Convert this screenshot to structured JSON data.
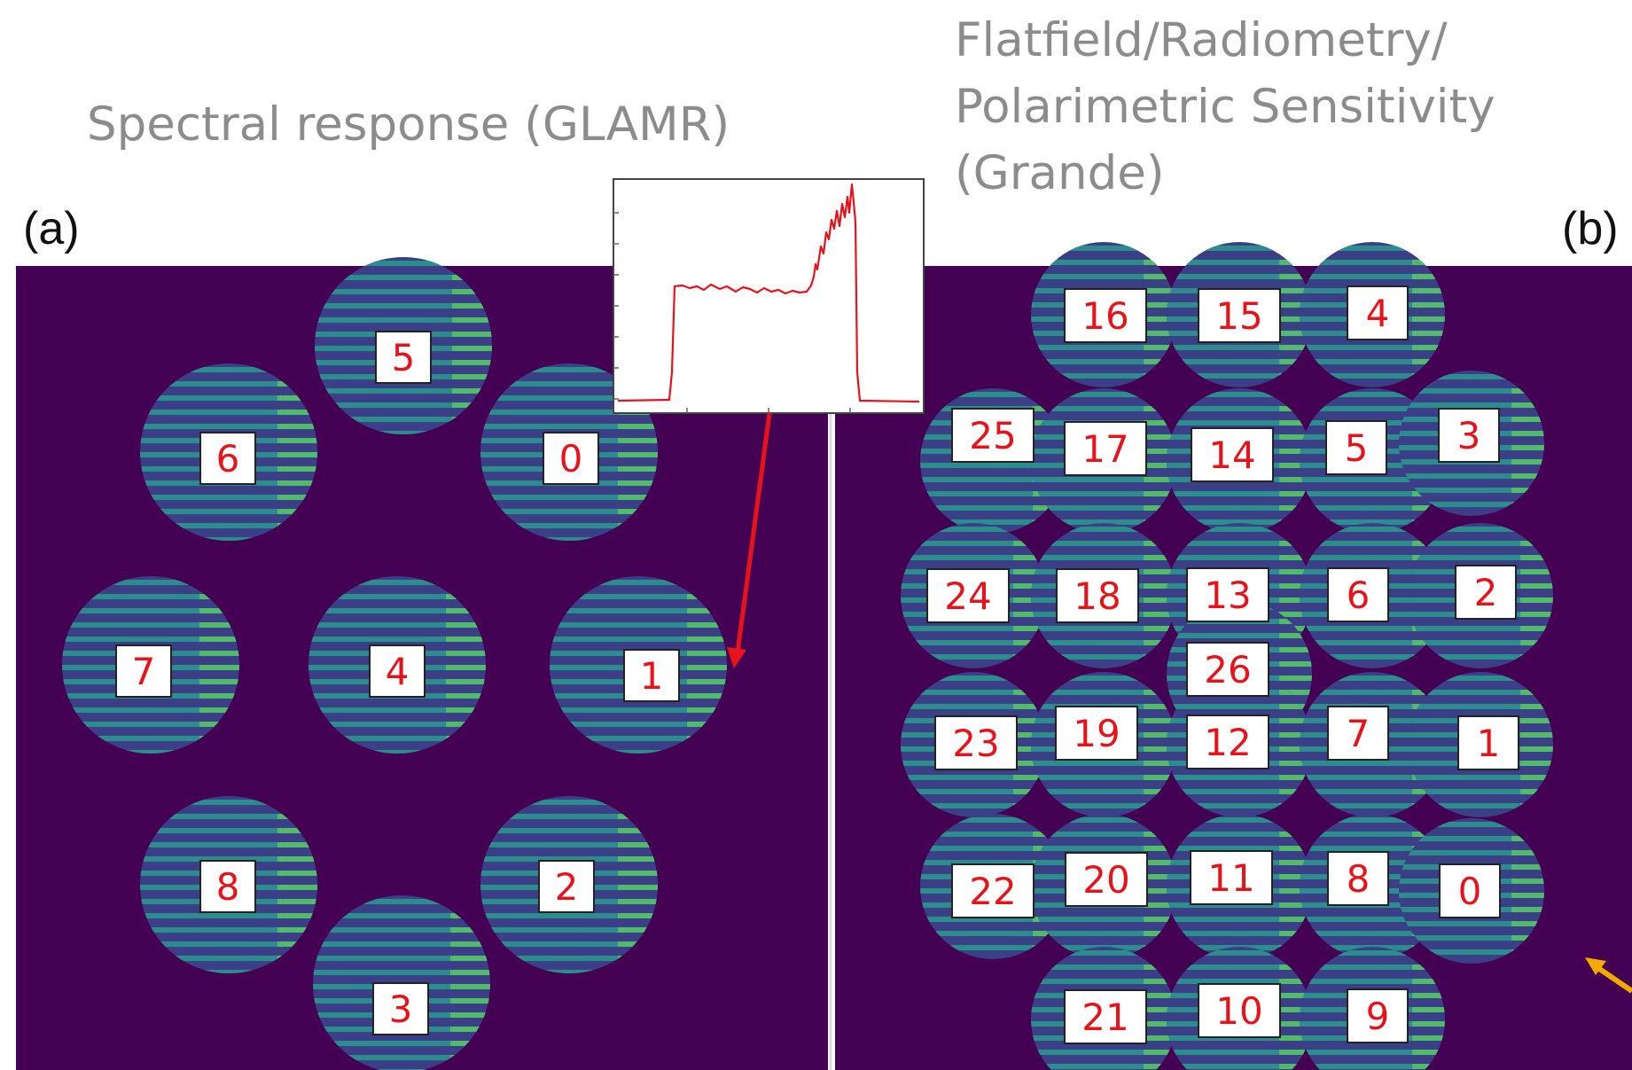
{
  "captions": {
    "left": "Spectral response (GLAMR)",
    "right_lines": [
      "Flatfield/Radiometry/",
      "Polarimetric Sensitivity",
      "(Grande)"
    ]
  },
  "panels": {
    "a": {
      "letter": "(a)",
      "labels": [
        "5",
        "6",
        "0",
        "7",
        "4",
        "1",
        "8",
        "2",
        "3"
      ]
    },
    "b": {
      "letter": "(b)",
      "labels": [
        "16",
        "15",
        "4",
        "25",
        "17",
        "14",
        "5",
        "3",
        "24",
        "18",
        "13",
        "6",
        "2",
        "26",
        "23",
        "19",
        "12",
        "7",
        "1",
        "22",
        "20",
        "11",
        "8",
        "0",
        "21",
        "10",
        "9"
      ]
    }
  },
  "colors": {
    "background": "#440154",
    "disk": "#3b3f86",
    "stripe": "#2c8c8e",
    "stripe_bright": "#5ec962",
    "label_text": "#e8131a",
    "arrow_red": "#e8131a",
    "arrow_orange": "#f2a900",
    "caption": "#8c8c8c"
  }
}
